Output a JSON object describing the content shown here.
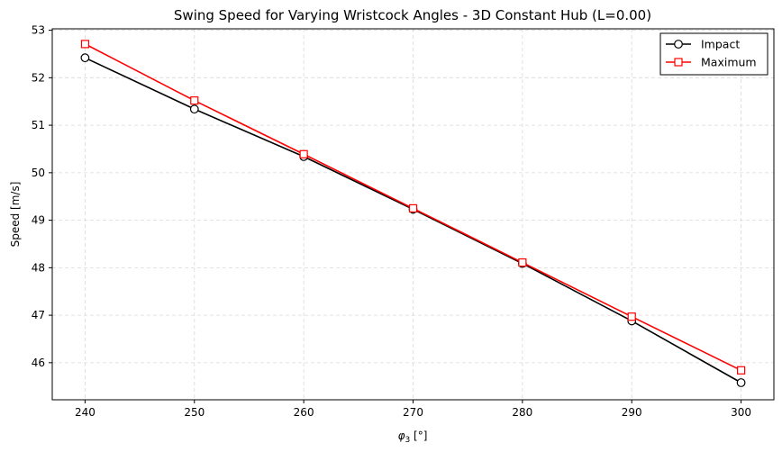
{
  "chart_data": {
    "type": "line",
    "title": "Swing Speed for Varying Wristcock Angles - 3D Constant Hub (L=0.00)",
    "xlabel": "φ3 [°]",
    "ylabel": "Speed [m/s]",
    "x": [
      240,
      250,
      260,
      270,
      280,
      290,
      300
    ],
    "xticks": [
      "240",
      "250",
      "260",
      "270",
      "280",
      "290",
      "300"
    ],
    "yticks": [
      "46",
      "47",
      "48",
      "49",
      "50",
      "51",
      "52",
      "53"
    ],
    "xlim": [
      237,
      303
    ],
    "ylim": [
      45.22,
      53.03
    ],
    "grid": true,
    "legend_position": "upper-right",
    "series": [
      {
        "name": "Impact",
        "color": "#000000",
        "marker": "circle",
        "values": [
          52.42,
          51.34,
          50.34,
          49.23,
          48.09,
          46.88,
          45.58
        ]
      },
      {
        "name": "Maximum",
        "color": "#ff0000",
        "marker": "square",
        "values": [
          52.71,
          51.52,
          50.39,
          49.25,
          48.11,
          46.97,
          45.84
        ]
      }
    ]
  }
}
